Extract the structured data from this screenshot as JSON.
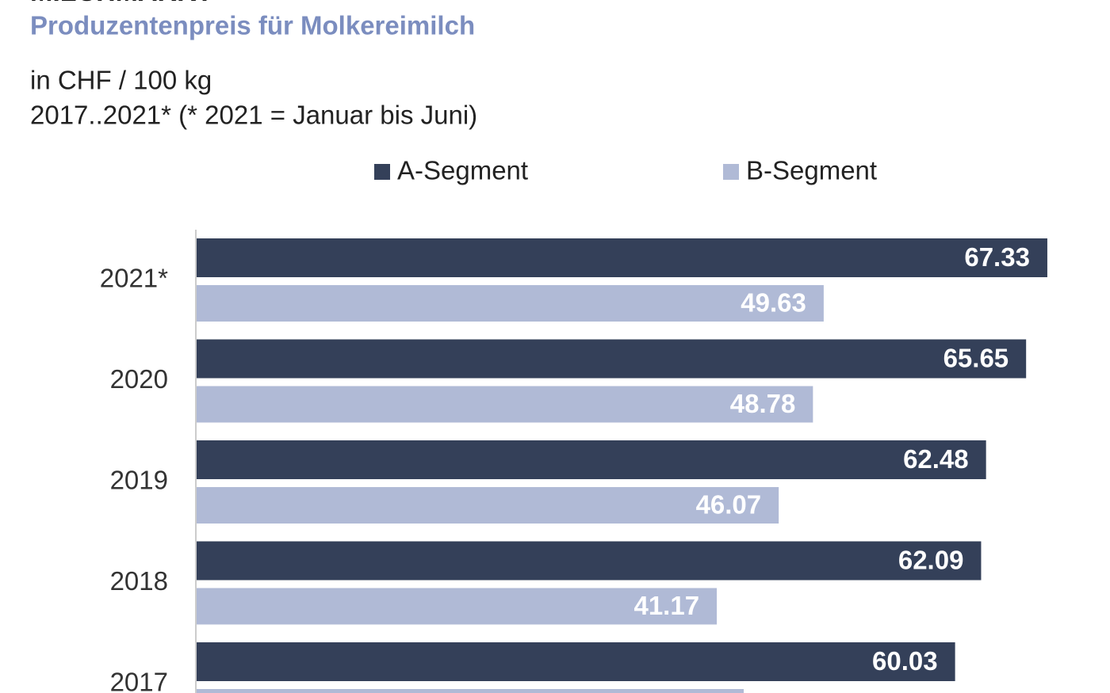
{
  "chart_data": {
    "type": "bar",
    "orientation": "horizontal",
    "title": "MILCHMARKT",
    "subtitle": "Produzentenpreis  für Molkereimilch",
    "unit_note": "in CHF / 100 kg",
    "period_note": "2017..2021*   (* 2021 = Januar bis Juni)",
    "categories": [
      "2021*",
      "2020",
      "2019",
      "2018",
      "2017"
    ],
    "series": [
      {
        "name": "A-Segment",
        "color": "#344059",
        "values": [
          67.33,
          65.65,
          62.48,
          62.09,
          60.03
        ]
      },
      {
        "name": "B-Segment",
        "color": "#b0bad6",
        "values": [
          49.63,
          48.78,
          46.07,
          41.17,
          43.3
        ]
      }
    ],
    "xlim": [
      0,
      70
    ]
  }
}
